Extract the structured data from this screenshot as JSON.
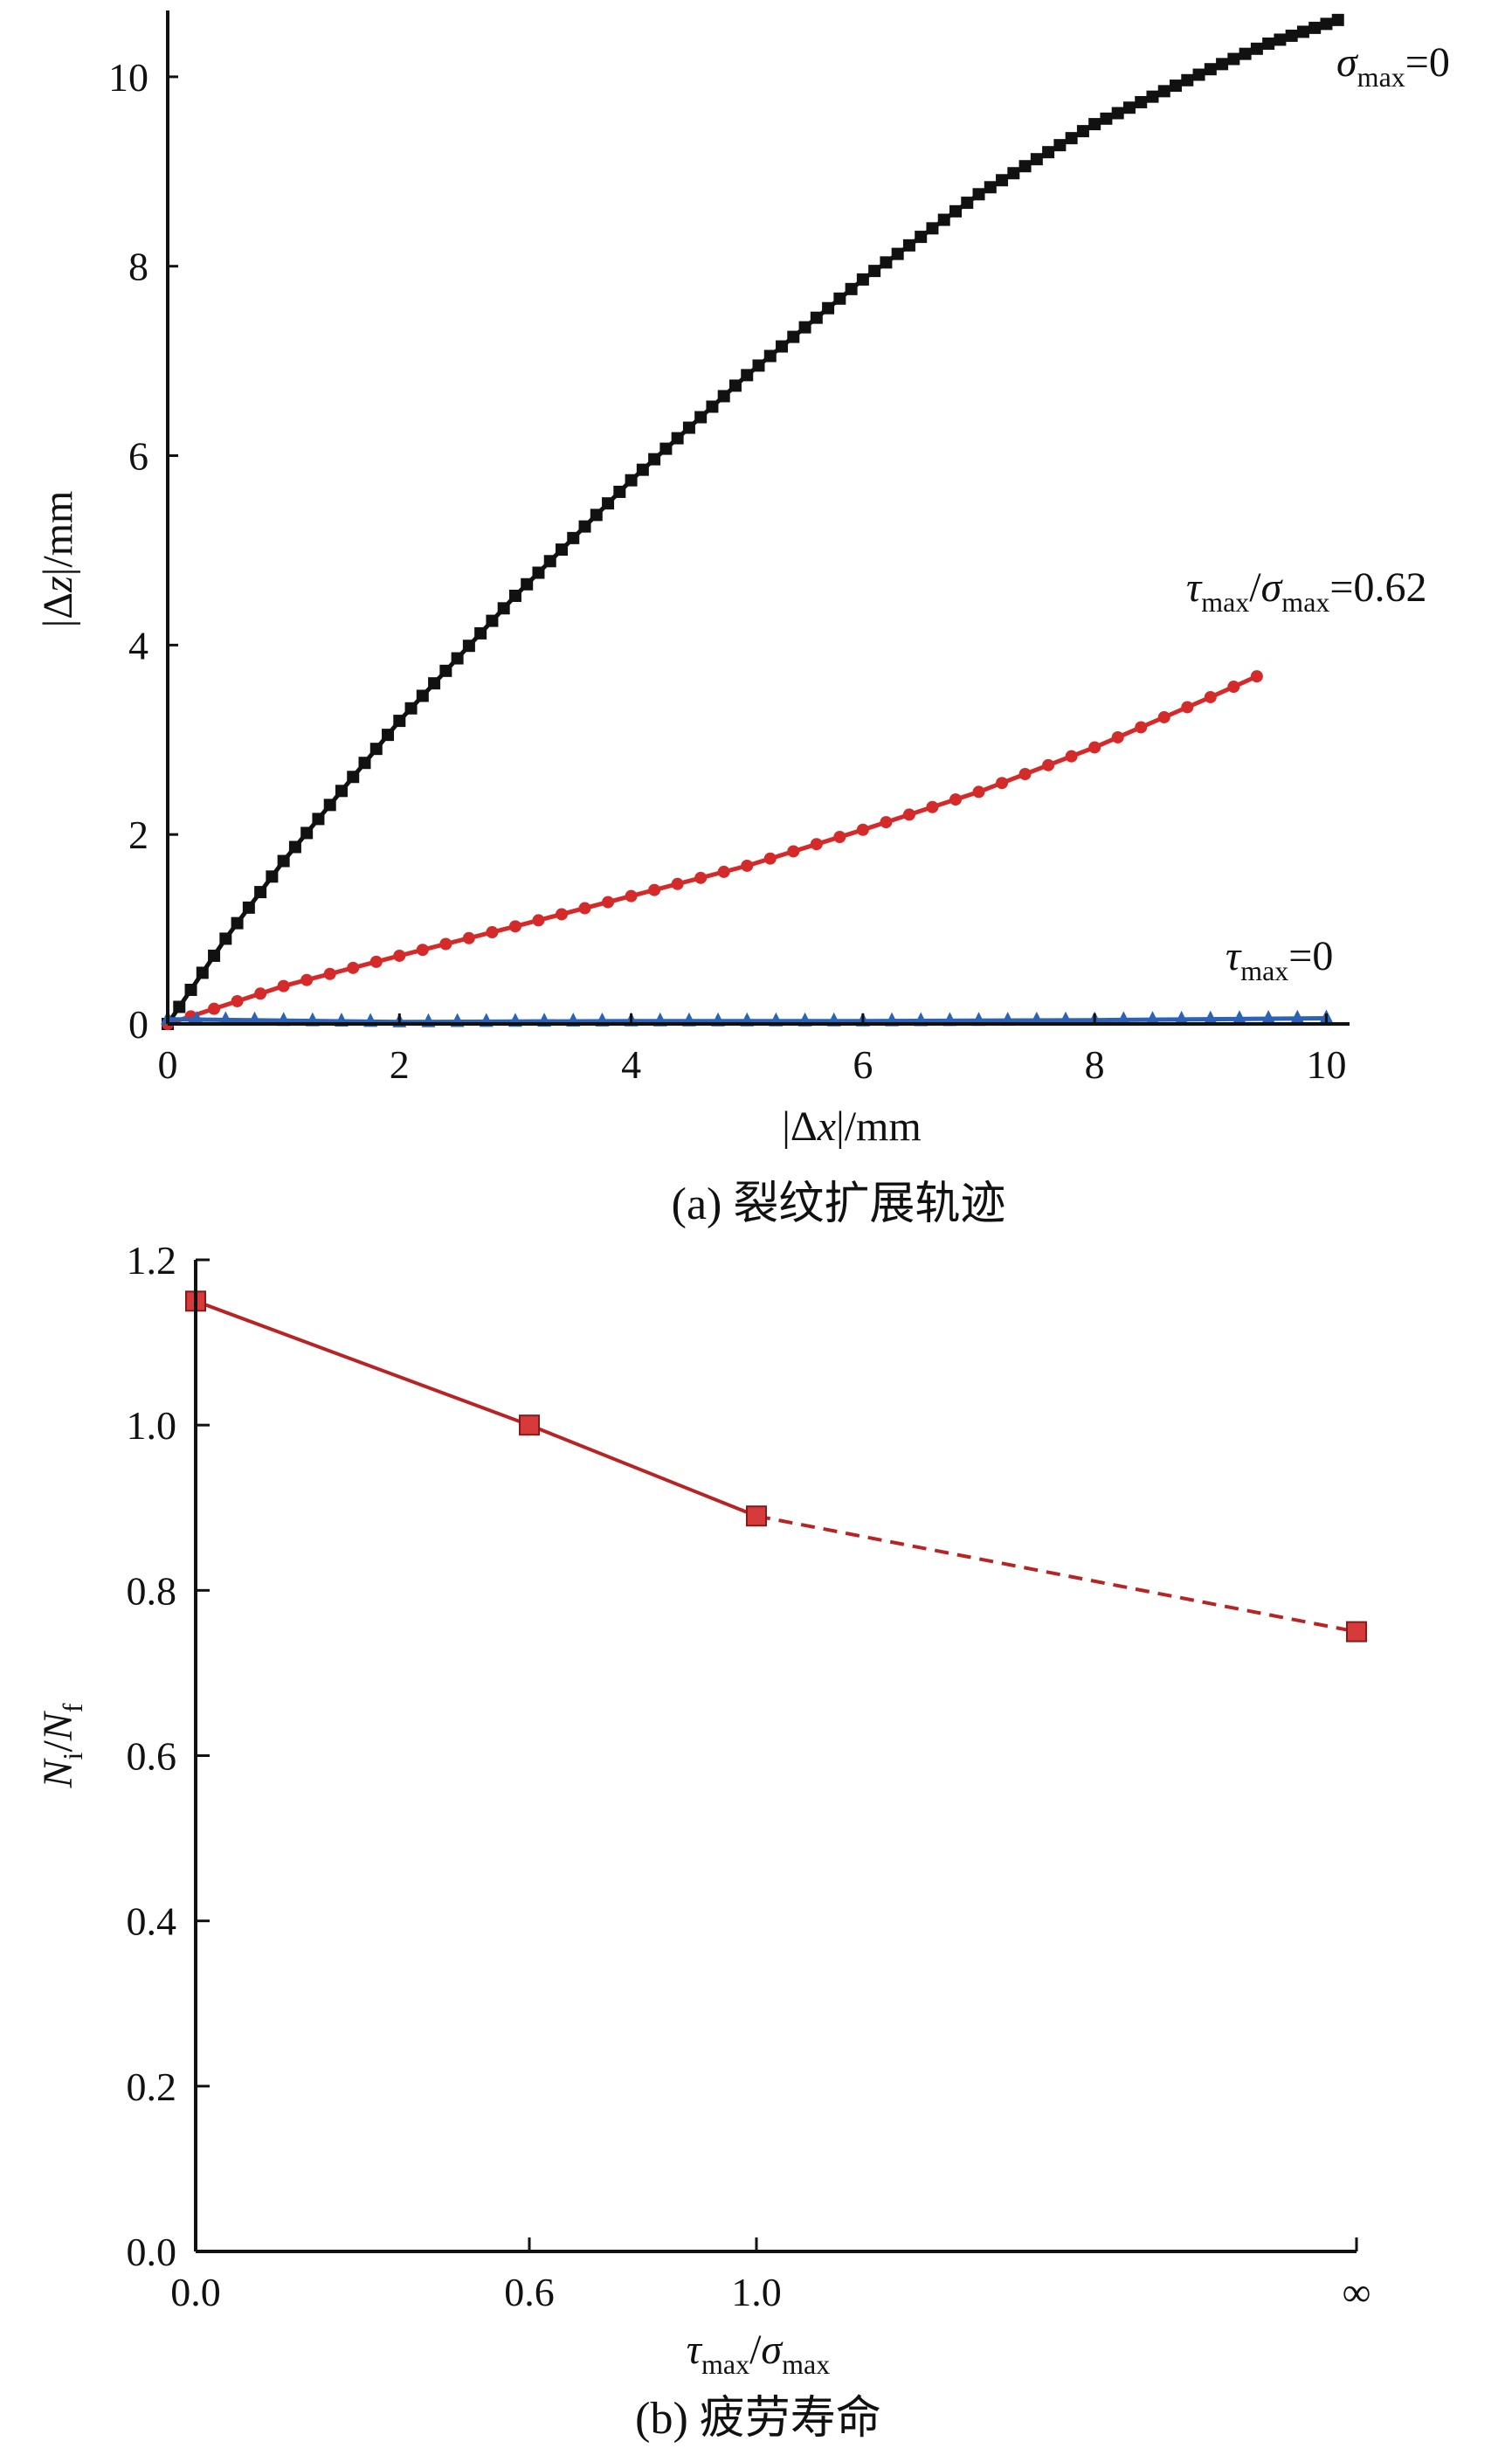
{
  "chart_data": [
    {
      "id": "a",
      "type": "line",
      "caption": "(a) 裂纹扩展轨迹",
      "xlabel": {
        "bars": "|Δ",
        "var": "x",
        "rest": "|/mm"
      },
      "ylabel": {
        "bars": "|Δ",
        "var": "z",
        "rest": "|/mm"
      },
      "xlim": [
        0,
        10.2
      ],
      "ylim": [
        0,
        10.7
      ],
      "xticks": [
        "0",
        "2",
        "4",
        "6",
        "8",
        "10"
      ],
      "yticks": [
        "0",
        "2",
        "4",
        "6",
        "8",
        "10"
      ],
      "grid": false,
      "series": [
        {
          "name": "σmax=0",
          "label": {
            "sym": "σ",
            "sub": "max",
            "rest": "=0"
          },
          "color": "#111111",
          "marker": "square",
          "points": [
            [
              0,
              0
            ],
            [
              0.5,
              0.9
            ],
            [
              1,
              1.72
            ],
            [
              2,
              3.2
            ],
            [
              3,
              4.52
            ],
            [
              4,
              5.74
            ],
            [
              5,
              6.85
            ],
            [
              6,
              7.86
            ],
            [
              7,
              8.76
            ],
            [
              8,
              9.5
            ],
            [
              9,
              10.08
            ],
            [
              9.5,
              10.35
            ],
            [
              10.1,
              10.6
            ]
          ]
        },
        {
          "name": "τmax/σmax=0.62",
          "label": {
            "sym": "τ",
            "sub": "max",
            "mid": "/",
            "sym2": "σ",
            "sub2": "max",
            "rest": "=0.62"
          },
          "color": "#d42a2a",
          "marker": "circle",
          "points": [
            [
              0,
              0
            ],
            [
              1,
              0.4
            ],
            [
              2,
              0.72
            ],
            [
              3,
              1.03
            ],
            [
              4,
              1.35
            ],
            [
              5,
              1.67
            ],
            [
              6,
              2.05
            ],
            [
              7,
              2.45
            ],
            [
              8,
              2.92
            ],
            [
              9,
              3.45
            ],
            [
              9.4,
              3.67
            ]
          ]
        },
        {
          "name": "τmax=0",
          "label": {
            "sym": "τ",
            "sub": "max",
            "rest": "=0"
          },
          "color": "#2b63b8",
          "marker": "triangle",
          "points": [
            [
              0,
              0.05
            ],
            [
              2,
              0.02
            ],
            [
              4,
              0.03
            ],
            [
              6,
              0.03
            ],
            [
              8,
              0.04
            ],
            [
              10,
              0.06
            ]
          ]
        }
      ]
    },
    {
      "id": "b",
      "type": "line",
      "caption": "(b) 疲劳寿命",
      "xlabel": {
        "sym": "τ",
        "sub": "max",
        "mid": "/",
        "sym2": "σ",
        "sub2": "max"
      },
      "ylabel": {
        "v1": "N",
        "s1": "i",
        "mid": "/",
        "v2": "N",
        "s2": "f"
      },
      "categories": [
        "0.0",
        "0.6",
        "1.0",
        "∞"
      ],
      "x": [
        0.0,
        0.6,
        1.0,
        2.6
      ],
      "values": [
        1.15,
        1.0,
        0.89,
        0.75
      ],
      "ylim": [
        0,
        1.2
      ],
      "yticks": [
        "0.0",
        "0.2",
        "0.4",
        "0.6",
        "0.8",
        "1.0",
        "1.2"
      ],
      "grid": false,
      "color": "#b82424",
      "marker_color": "#d63a3a",
      "marker": "square",
      "dashed_last_segment": true
    }
  ]
}
